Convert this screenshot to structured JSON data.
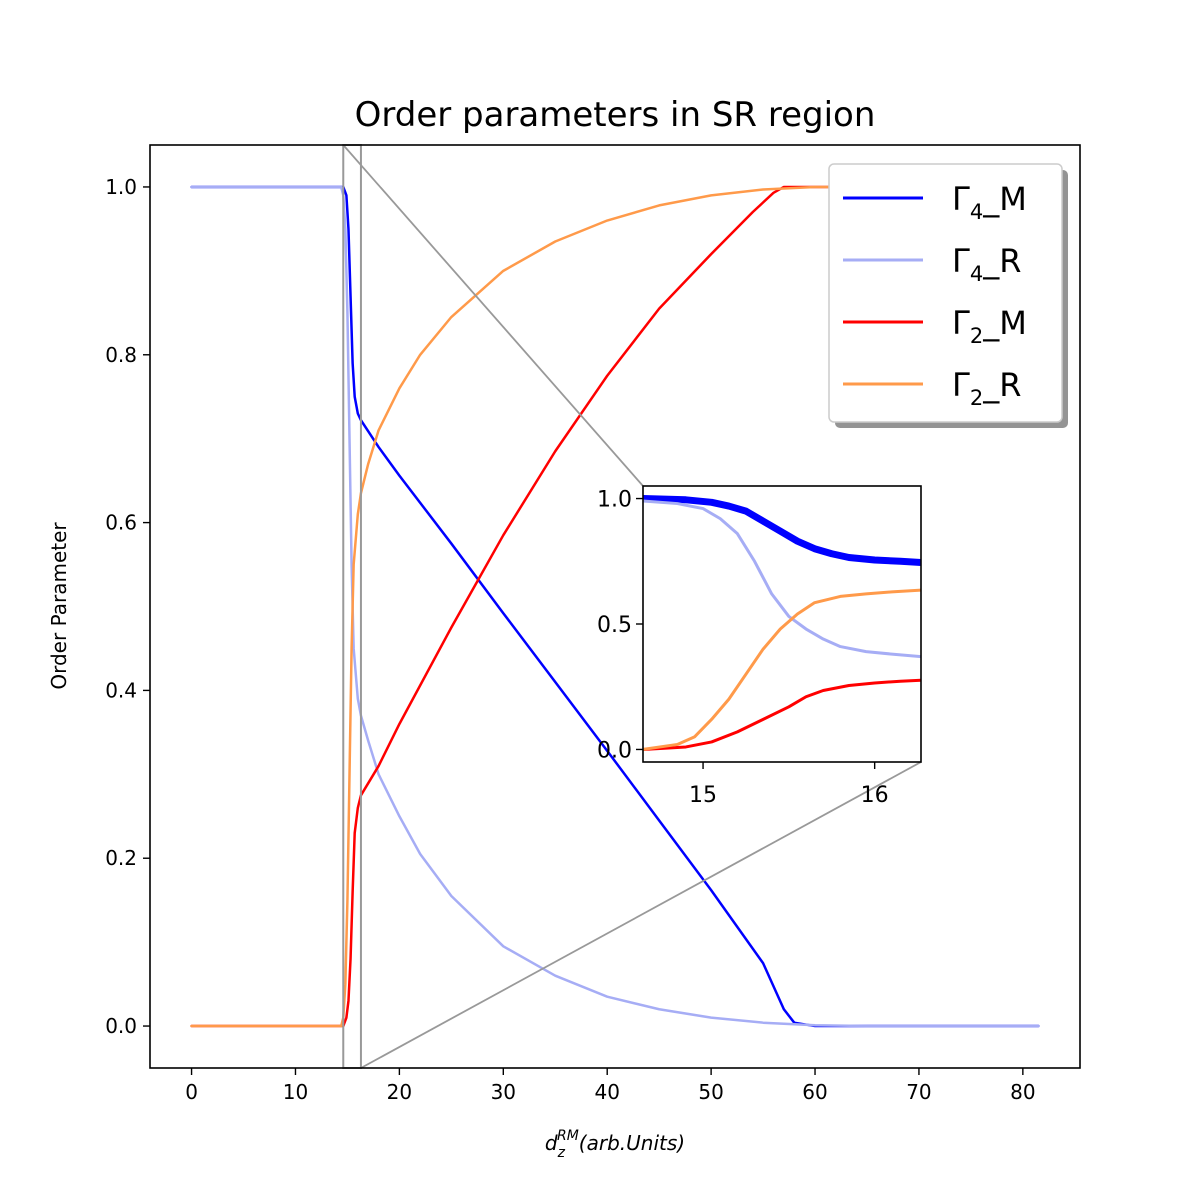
{
  "figure": {
    "title": "Order parameters in SR region"
  },
  "chart_data": [
    {
      "type": "line",
      "title": "Order parameters in SR region",
      "xlabel": "d_z^RM(arb.Units)",
      "ylabel": "Order Parameter",
      "xlim": [
        -4,
        85.5
      ],
      "ylim": [
        -0.05,
        1.05
      ],
      "xticks": [
        "0",
        "10",
        "20",
        "30",
        "40",
        "50",
        "60",
        "70",
        "80"
      ],
      "yticks": [
        "0.0",
        "0.2",
        "0.4",
        "0.6",
        "0.8",
        "1.0"
      ],
      "legend": {
        "position": "top-right",
        "shadow": true
      },
      "grid": false,
      "zoom_window": {
        "x_range": [
          14.6,
          16.3
        ]
      },
      "series": [
        {
          "name": "Γ4_M",
          "color": "#0000ff",
          "points": [
            [
              0,
              1.0
            ],
            [
              14.6,
              1.0
            ],
            [
              14.9,
              0.99
            ],
            [
              15.1,
              0.95
            ],
            [
              15.3,
              0.87
            ],
            [
              15.5,
              0.79
            ],
            [
              15.7,
              0.75
            ],
            [
              16.0,
              0.73
            ],
            [
              16.3,
              0.722
            ],
            [
              18,
              0.69
            ],
            [
              20,
              0.656
            ],
            [
              25,
              0.575
            ],
            [
              30,
              0.492
            ],
            [
              35,
              0.41
            ],
            [
              40,
              0.328
            ],
            [
              45,
              0.245
            ],
            [
              50,
              0.162
            ],
            [
              55,
              0.075
            ],
            [
              57,
              0.02
            ],
            [
              58,
              0.004
            ],
            [
              60,
              0.0
            ],
            [
              81.5,
              0.0
            ]
          ]
        },
        {
          "name": "Γ4_R",
          "color": "#a6adf5",
          "points": [
            [
              0,
              1.0
            ],
            [
              14.4,
              1.0
            ],
            [
              14.6,
              0.99
            ],
            [
              14.8,
              0.95
            ],
            [
              15.0,
              0.85
            ],
            [
              15.2,
              0.7
            ],
            [
              15.4,
              0.55
            ],
            [
              15.6,
              0.45
            ],
            [
              16.0,
              0.39
            ],
            [
              16.3,
              0.37
            ],
            [
              17,
              0.34
            ],
            [
              18,
              0.3
            ],
            [
              20,
              0.25
            ],
            [
              22,
              0.205
            ],
            [
              25,
              0.155
            ],
            [
              30,
              0.095
            ],
            [
              35,
              0.06
            ],
            [
              40,
              0.035
            ],
            [
              45,
              0.02
            ],
            [
              50,
              0.01
            ],
            [
              55,
              0.004
            ],
            [
              60,
              0.001
            ],
            [
              65,
              0.0
            ],
            [
              81.5,
              0.0
            ]
          ]
        },
        {
          "name": "Γ2_M",
          "color": "#ff0000",
          "points": [
            [
              0,
              0.0
            ],
            [
              14.6,
              0.0
            ],
            [
              14.9,
              0.01
            ],
            [
              15.1,
              0.03
            ],
            [
              15.3,
              0.08
            ],
            [
              15.5,
              0.16
            ],
            [
              15.7,
              0.23
            ],
            [
              16.0,
              0.26
            ],
            [
              16.3,
              0.275
            ],
            [
              18,
              0.31
            ],
            [
              20,
              0.36
            ],
            [
              25,
              0.475
            ],
            [
              30,
              0.585
            ],
            [
              35,
              0.685
            ],
            [
              40,
              0.775
            ],
            [
              45,
              0.855
            ],
            [
              50,
              0.92
            ],
            [
              54,
              0.97
            ],
            [
              56,
              0.993
            ],
            [
              57,
              1.0
            ],
            [
              81.5,
              1.0
            ]
          ]
        },
        {
          "name": "Γ2_R",
          "color": "#ff9a4a",
          "points": [
            [
              0,
              0.0
            ],
            [
              14.4,
              0.0
            ],
            [
              14.6,
              0.01
            ],
            [
              14.8,
              0.05
            ],
            [
              15.0,
              0.15
            ],
            [
              15.2,
              0.3
            ],
            [
              15.4,
              0.45
            ],
            [
              15.6,
              0.55
            ],
            [
              16.0,
              0.61
            ],
            [
              16.3,
              0.635
            ],
            [
              17,
              0.67
            ],
            [
              18,
              0.71
            ],
            [
              20,
              0.76
            ],
            [
              22,
              0.8
            ],
            [
              25,
              0.845
            ],
            [
              30,
              0.9
            ],
            [
              35,
              0.935
            ],
            [
              40,
              0.96
            ],
            [
              45,
              0.978
            ],
            [
              50,
              0.99
            ],
            [
              55,
              0.997
            ],
            [
              60,
              1.0
            ],
            [
              81.5,
              1.0
            ]
          ]
        }
      ]
    },
    {
      "type": "line",
      "title": "",
      "xlim": [
        14.65,
        16.27
      ],
      "ylim": [
        -0.05,
        1.05
      ],
      "xticks": [
        "15",
        "16"
      ],
      "yticks": [
        "0.0",
        "0.5",
        "1.0"
      ],
      "series": [
        {
          "name": "Γ4_M",
          "color": "#0000ff",
          "points": [
            [
              14.65,
              1.0
            ],
            [
              14.9,
              0.995
            ],
            [
              15.05,
              0.985
            ],
            [
              15.15,
              0.97
            ],
            [
              15.25,
              0.95
            ],
            [
              15.35,
              0.91
            ],
            [
              15.45,
              0.87
            ],
            [
              15.55,
              0.83
            ],
            [
              15.65,
              0.8
            ],
            [
              15.75,
              0.78
            ],
            [
              15.85,
              0.765
            ],
            [
              16.0,
              0.755
            ],
            [
              16.15,
              0.75
            ],
            [
              16.27,
              0.745
            ]
          ]
        },
        {
          "name": "Γ4_R",
          "color": "#a6adf5",
          "points": [
            [
              14.65,
              0.99
            ],
            [
              14.85,
              0.98
            ],
            [
              15.0,
              0.96
            ],
            [
              15.1,
              0.92
            ],
            [
              15.2,
              0.86
            ],
            [
              15.3,
              0.75
            ],
            [
              15.4,
              0.62
            ],
            [
              15.5,
              0.53
            ],
            [
              15.6,
              0.48
            ],
            [
              15.7,
              0.44
            ],
            [
              15.8,
              0.41
            ],
            [
              15.95,
              0.39
            ],
            [
              16.1,
              0.38
            ],
            [
              16.27,
              0.37
            ]
          ]
        },
        {
          "name": "Γ2_M",
          "color": "#ff0000",
          "points": [
            [
              14.65,
              0.0
            ],
            [
              14.9,
              0.01
            ],
            [
              15.05,
              0.03
            ],
            [
              15.2,
              0.07
            ],
            [
              15.35,
              0.12
            ],
            [
              15.5,
              0.17
            ],
            [
              15.6,
              0.21
            ],
            [
              15.7,
              0.235
            ],
            [
              15.85,
              0.255
            ],
            [
              16.0,
              0.265
            ],
            [
              16.15,
              0.272
            ],
            [
              16.27,
              0.276
            ]
          ]
        },
        {
          "name": "Γ2_R",
          "color": "#ff9a4a",
          "points": [
            [
              14.65,
              0.0
            ],
            [
              14.85,
              0.02
            ],
            [
              14.95,
              0.05
            ],
            [
              15.05,
              0.12
            ],
            [
              15.15,
              0.2
            ],
            [
              15.25,
              0.3
            ],
            [
              15.35,
              0.4
            ],
            [
              15.45,
              0.48
            ],
            [
              15.55,
              0.54
            ],
            [
              15.65,
              0.585
            ],
            [
              15.8,
              0.61
            ],
            [
              15.95,
              0.62
            ],
            [
              16.1,
              0.628
            ],
            [
              16.27,
              0.635
            ]
          ]
        }
      ]
    }
  ]
}
